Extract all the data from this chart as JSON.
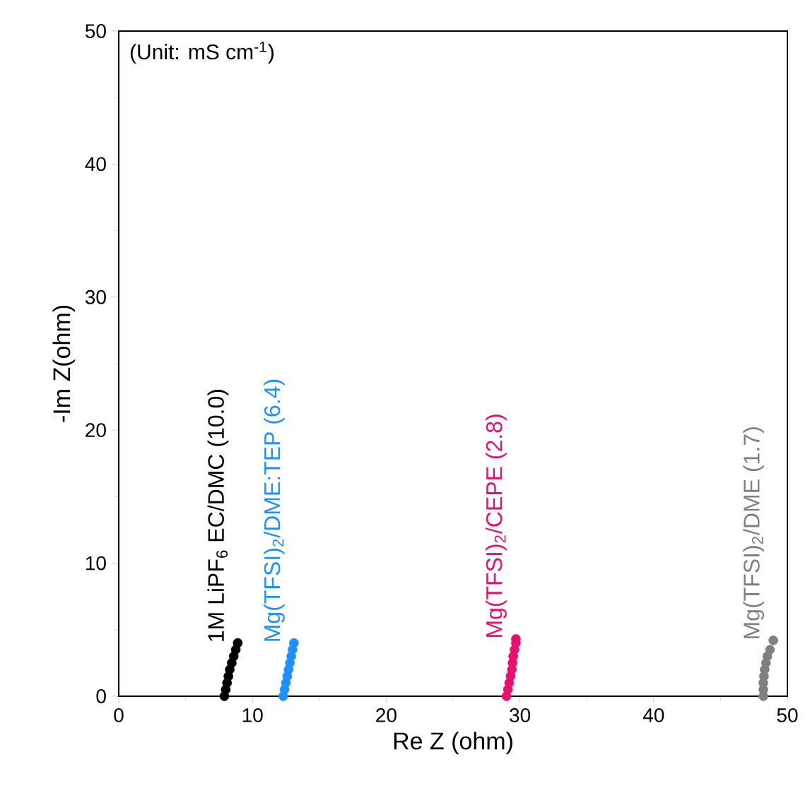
{
  "chart_data": {
    "type": "scatter",
    "xlabel": "Re Z (ohm)",
    "ylabel": "-Im Z(ohm)",
    "annotations": [
      "(Unit: mS cm$^{-1}$)"
    ],
    "xlim": [
      0,
      50
    ],
    "ylim": [
      0,
      50
    ],
    "xticks": [
      0,
      10,
      20,
      30,
      40,
      50
    ],
    "yticks": [
      0,
      10,
      20,
      30,
      40,
      50
    ],
    "marker": "circle",
    "legend": false,
    "grid": false,
    "series": [
      {
        "name": "1M LiPF$_{6}$ EC/DMC (10.0)",
        "color": "#000000",
        "x": [
          7.9,
          8.0,
          8.1,
          8.2,
          8.3,
          8.45,
          8.6,
          8.75,
          8.9
        ],
        "values": [
          0,
          0.5,
          1.0,
          1.5,
          2.0,
          2.5,
          3.0,
          3.5,
          4.0
        ]
      },
      {
        "name": "Mg(TFSI)$_{2}$/DME:TEP (6.4)",
        "color": "#1e90ff",
        "x": [
          12.3,
          12.4,
          12.5,
          12.6,
          12.7,
          12.8,
          12.9,
          13.0,
          13.1
        ],
        "values": [
          0,
          0.5,
          1.0,
          1.5,
          2.0,
          2.5,
          3.0,
          3.5,
          4.0
        ]
      },
      {
        "name": "Mg(TFSI)$_{2}$/CEPE (2.8)",
        "color": "#e8106e",
        "x": [
          29.0,
          29.1,
          29.2,
          29.3,
          29.4,
          29.45,
          29.5,
          29.6,
          29.7,
          29.7
        ],
        "values": [
          0,
          0.5,
          1.0,
          1.5,
          2.0,
          2.5,
          3.0,
          3.5,
          4.0,
          4.3
        ]
      },
      {
        "name": "Mg(TFSI)$_{2}$/DME (1.7)",
        "color": "#808080",
        "x": [
          48.2,
          48.2,
          48.2,
          48.25,
          48.3,
          48.4,
          48.5,
          48.7,
          48.95
        ],
        "values": [
          0,
          0.5,
          1.0,
          1.5,
          2.0,
          2.5,
          3.0,
          3.5,
          4.2
        ]
      }
    ]
  }
}
